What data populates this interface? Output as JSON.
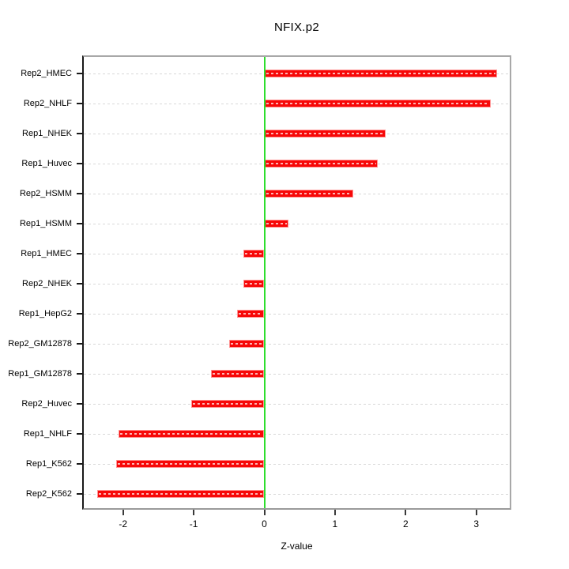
{
  "chart_data": {
    "type": "bar",
    "orientation": "horizontal",
    "title": "NFIX.p2",
    "xlabel": "Z-value",
    "categories": [
      "Rep2_HMEC",
      "Rep2_NHLF",
      "Rep1_NHEK",
      "Rep1_Huvec",
      "Rep2_HSMM",
      "Rep1_HSMM",
      "Rep1_HMEC",
      "Rep2_NHEK",
      "Rep1_HepG2",
      "Rep2_GM12878",
      "Rep1_GM12878",
      "Rep2_Huvec",
      "Rep1_NHLF",
      "Rep1_K562",
      "Rep2_K562"
    ],
    "values": [
      3.29,
      3.2,
      1.72,
      1.6,
      1.26,
      0.34,
      -0.3,
      -0.3,
      -0.39,
      -0.5,
      -0.75,
      -1.04,
      -2.06,
      -2.1,
      -2.37
    ],
    "x_ticks": [
      -2,
      -1,
      0,
      1,
      2,
      3
    ],
    "x_tick_labels": [
      "-2",
      "-1",
      "0",
      "1",
      "2",
      "3"
    ],
    "xlim": [
      -2.58,
      3.5
    ],
    "grid": "dotted-horizontal",
    "legend": "none",
    "colors": {
      "bar": "#f70808",
      "bar_edge": "#ff9393",
      "bar_inner_dash": "rgba(255,255,255,0.7)",
      "zero_line": "#2ede2e",
      "gridline": "#d8d8d8",
      "box_border": "#a8a8a8",
      "axis_line": "#1a1a1a",
      "text": "#000000",
      "background": "#ffffff"
    }
  }
}
